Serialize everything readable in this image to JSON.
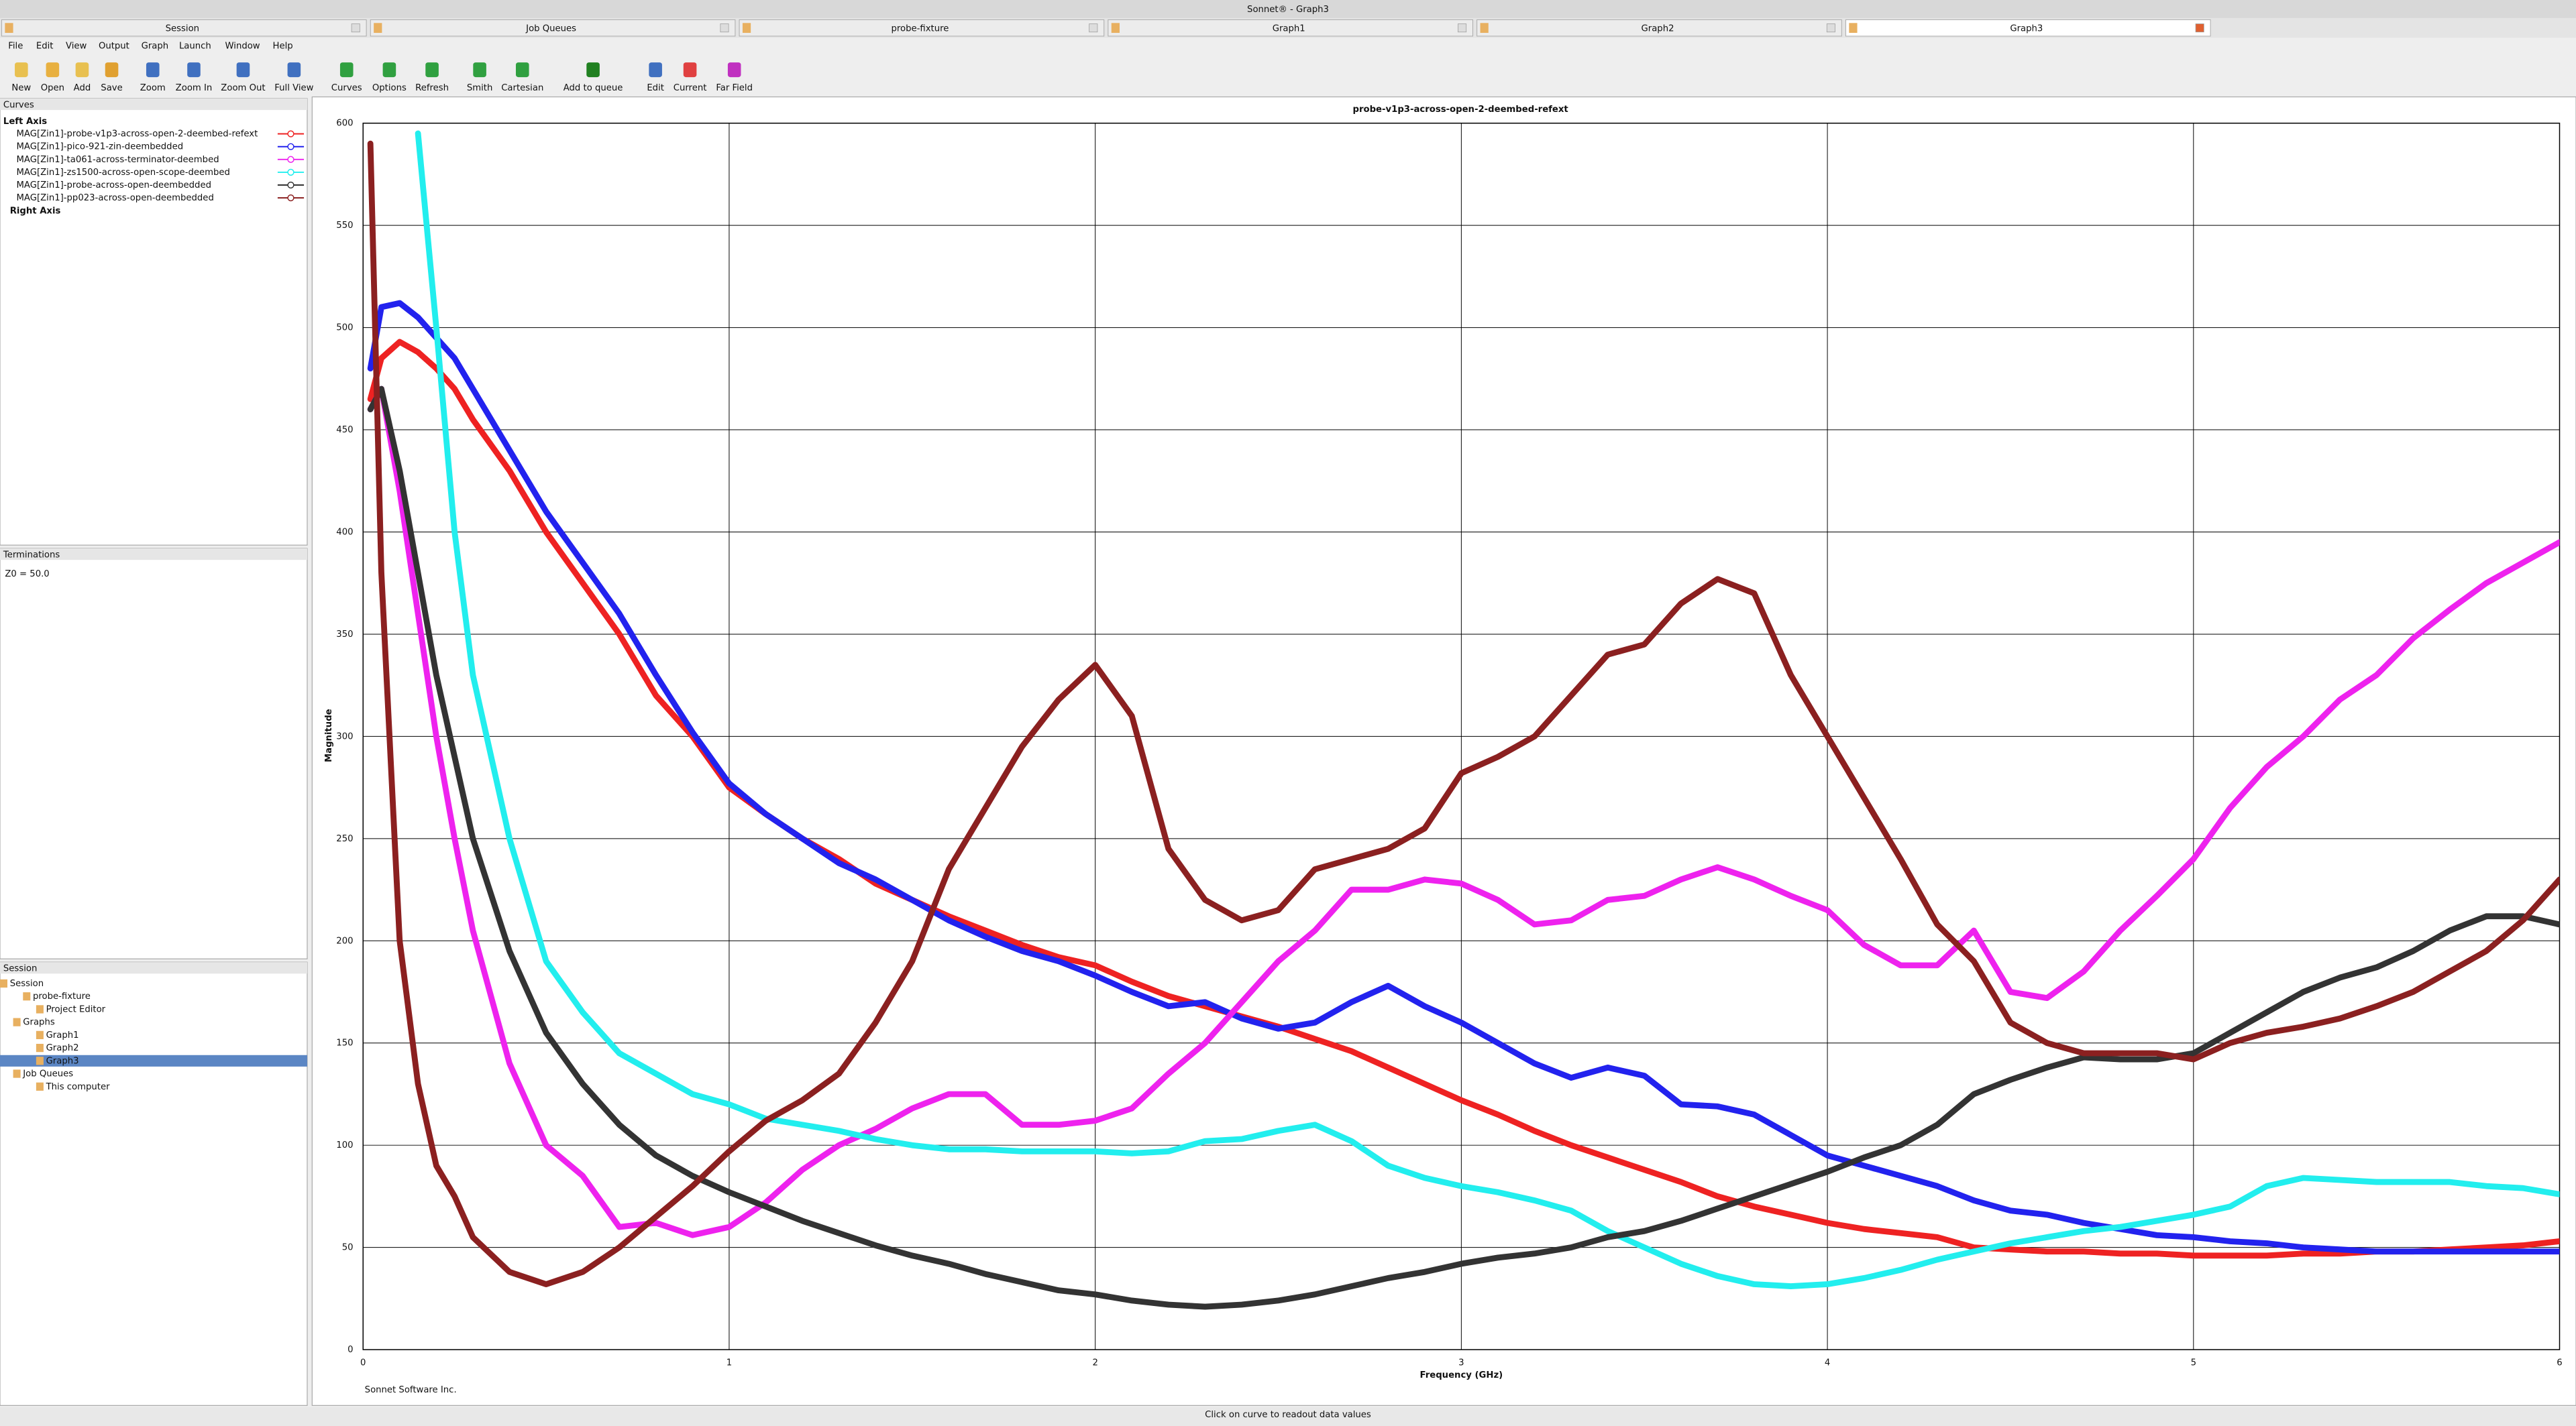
{
  "window": {
    "title": "Sonnet® - Graph3",
    "tabs": [
      "Session",
      "Job Queues",
      "probe-fixture",
      "Graph1",
      "Graph2",
      "Graph3"
    ],
    "menu": [
      "File",
      "Edit",
      "View",
      "Output",
      "Graph",
      "Launch",
      "Window",
      "Help"
    ],
    "toolbar": [
      "New",
      "Open",
      "Add",
      "Save",
      "Zoom",
      "Zoom In",
      "Zoom Out",
      "Full View",
      "Curves",
      "Options",
      "Refresh",
      "Smith",
      "Cartesian",
      "Add to queue",
      "Edit",
      "Current",
      "Far Field"
    ],
    "curves_panel": {
      "title": "Curves",
      "left_axis": "Left Axis",
      "right_axis": "Right Axis"
    },
    "terminations_panel": {
      "title": "Terminations",
      "text": "Z0 = 50.0"
    },
    "session_panel": {
      "title": "Session",
      "items": [
        "Session",
        "probe-fixture",
        "Project Editor",
        "Graphs",
        "Graph1",
        "Graph2",
        "Graph3",
        "Job Queues",
        "This computer"
      ]
    },
    "footer": "Sonnet Software Inc.",
    "status": "Click on curve to readout data values"
  },
  "chart_data": {
    "type": "line",
    "title": "probe-v1p3-across-open-2-deembed-refext",
    "x_label": "Frequency (GHz)",
    "y_label": "Magnitude",
    "x": [
      0.02,
      0.05,
      0.1,
      0.15,
      0.2,
      0.25,
      0.3,
      0.4,
      0.5,
      0.6,
      0.7,
      0.8,
      0.9,
      1.0,
      1.1,
      1.2,
      1.3,
      1.4,
      1.5,
      1.6,
      1.7,
      1.8,
      1.9,
      2.0,
      2.1,
      2.2,
      2.3,
      2.4,
      2.5,
      2.6,
      2.7,
      2.8,
      2.9,
      3.0,
      3.1,
      3.2,
      3.3,
      3.4,
      3.5,
      3.6,
      3.7,
      3.8,
      3.9,
      4.0,
      4.1,
      4.2,
      4.3,
      4.4,
      4.5,
      4.6,
      4.7,
      4.8,
      4.9,
      5.0,
      5.1,
      5.2,
      5.3,
      5.4,
      5.5,
      5.6,
      5.7,
      5.8,
      5.9,
      6.0
    ],
    "xlim": [
      0,
      6
    ],
    "xticks": [
      0,
      1,
      2,
      3,
      4,
      5,
      6
    ],
    "ylim": [
      0,
      600
    ],
    "yticks": [
      0,
      50,
      100,
      150,
      200,
      250,
      300,
      350,
      400,
      450,
      500,
      550,
      600
    ],
    "grid": true,
    "series": [
      {
        "name": "MAG[Zin1]-probe-v1p3-across-open-2-deembed-refext",
        "color": "#ee2222",
        "values": [
          465,
          485,
          493,
          488,
          480,
          470,
          455,
          430,
          400,
          375,
          350,
          320,
          300,
          275,
          262,
          250,
          240,
          228,
          220,
          212,
          205,
          198,
          192,
          188,
          180,
          173,
          168,
          163,
          158,
          152,
          146,
          138,
          130,
          122,
          115,
          107,
          100,
          94,
          88,
          82,
          75,
          70,
          66,
          62,
          59,
          57,
          55,
          50,
          49,
          48,
          48,
          47,
          47,
          46,
          46,
          46,
          47,
          47,
          48,
          48,
          49,
          50,
          51,
          53
        ]
      },
      {
        "name": "MAG[Zin1]-pico-921-zin-deembedded",
        "color": "#2222ee",
        "values": [
          480,
          510,
          512,
          505,
          495,
          485,
          470,
          440,
          410,
          385,
          360,
          330,
          302,
          277,
          262,
          250,
          238,
          230,
          220,
          210,
          202,
          195,
          190,
          183,
          175,
          168,
          170,
          162,
          157,
          160,
          170,
          178,
          168,
          160,
          150,
          140,
          133,
          138,
          134,
          120,
          119,
          115,
          105,
          95,
          90,
          85,
          80,
          73,
          68,
          66,
          62,
          59,
          56,
          55,
          53,
          52,
          50,
          49,
          48,
          48,
          48,
          48,
          48,
          48
        ]
      },
      {
        "name": "MAG[Zin1]-ta061-across-terminator-deembed",
        "color": "#ee22ee",
        "values": [
          460,
          470,
          420,
          360,
          300,
          250,
          205,
          140,
          100,
          85,
          60,
          62,
          56,
          60,
          72,
          88,
          100,
          108,
          118,
          125,
          125,
          110,
          110,
          112,
          118,
          135,
          150,
          170,
          190,
          205,
          225,
          225,
          230,
          228,
          220,
          208,
          210,
          220,
          222,
          230,
          236,
          230,
          222,
          215,
          198,
          188,
          188,
          205,
          175,
          172,
          185,
          205,
          222,
          240,
          265,
          285,
          300,
          318,
          330,
          348,
          362,
          375,
          385,
          395
        ]
      },
      {
        "name": "MAG[Zin1]-zs1500-across-open-scope-deembed",
        "color": "#22eeee",
        "values": [
          null,
          null,
          null,
          595,
          500,
          400,
          330,
          250,
          190,
          165,
          145,
          135,
          125,
          120,
          113,
          110,
          107,
          103,
          100,
          98,
          98,
          97,
          97,
          97,
          96,
          97,
          102,
          103,
          107,
          110,
          102,
          90,
          84,
          80,
          77,
          73,
          68,
          58,
          50,
          42,
          36,
          32,
          31,
          32,
          35,
          39,
          44,
          48,
          52,
          55,
          58,
          60,
          63,
          66,
          70,
          80,
          84,
          83,
          82,
          82,
          82,
          80,
          79,
          76
        ]
      },
      {
        "name": "MAG[Zin1]-probe-across-open-deembedded",
        "color": "#333333",
        "values": [
          460,
          470,
          430,
          380,
          330,
          290,
          250,
          195,
          155,
          130,
          110,
          95,
          85,
          77,
          70,
          63,
          57,
          51,
          46,
          42,
          37,
          33,
          29,
          27,
          24,
          22,
          21,
          22,
          24,
          27,
          31,
          35,
          38,
          42,
          45,
          47,
          50,
          55,
          58,
          63,
          69,
          75,
          81,
          87,
          94,
          100,
          110,
          125,
          132,
          138,
          143,
          142,
          142,
          145,
          155,
          165,
          175,
          182,
          187,
          195,
          205,
          212,
          212,
          208
        ]
      },
      {
        "name": "MAG[Zin1]-pp023-across-open-deembedded",
        "color": "#8b2020",
        "values": [
          590,
          380,
          200,
          130,
          90,
          75,
          55,
          38,
          32,
          38,
          50,
          65,
          80,
          97,
          112,
          122,
          135,
          160,
          190,
          235,
          265,
          295,
          318,
          335,
          310,
          245,
          220,
          210,
          215,
          235,
          240,
          245,
          255,
          282,
          290,
          300,
          320,
          340,
          345,
          365,
          377,
          370,
          330,
          300,
          270,
          240,
          208,
          190,
          160,
          150,
          145,
          145,
          145,
          142,
          150,
          155,
          158,
          162,
          168,
          175,
          185,
          195,
          210,
          230
        ]
      }
    ]
  }
}
